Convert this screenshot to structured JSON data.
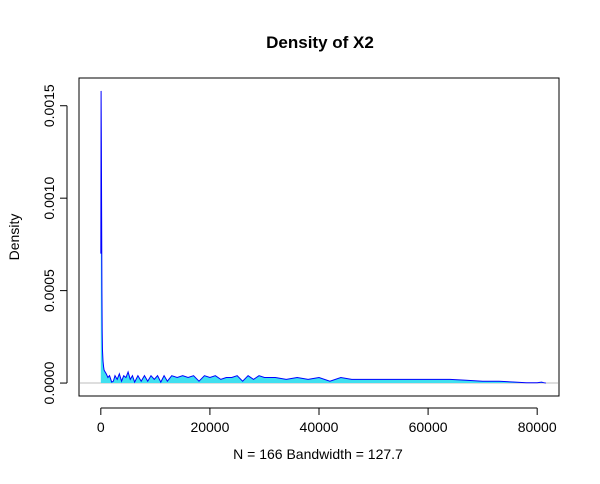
{
  "chart_data": {
    "type": "area",
    "title": "Density of X2",
    "xlabel": "N = 166   Bandwidth = 127.7",
    "ylabel": "Density",
    "xlim": [
      -4000,
      84000
    ],
    "ylim": [
      -7e-05,
      0.00165
    ],
    "x_ticks": [
      0,
      20000,
      40000,
      60000,
      80000
    ],
    "x_tick_labels": [
      "0",
      "20000",
      "40000",
      "60000",
      "80000"
    ],
    "y_ticks": [
      0,
      0.0005,
      0.001,
      0.0015
    ],
    "y_tick_labels": [
      "0.0000",
      "0.0005",
      "0.0010",
      "0.0015"
    ],
    "grid": false,
    "zero_line": true,
    "fill_color": "#40E0F0",
    "line_color": "#0000FF",
    "series": [
      {
        "x": [
          0,
          50,
          100,
          150,
          200,
          250,
          300,
          400,
          500,
          600,
          800,
          1000,
          1300,
          1600,
          2000,
          2300,
          2600,
          3000,
          3400,
          3800,
          4200,
          4600,
          5000,
          5400,
          5800,
          6200,
          6800,
          7400,
          8000,
          8600,
          9200,
          9800,
          10400,
          11000,
          11600,
          12200,
          13000,
          14000,
          15000,
          16000,
          17000,
          18000,
          19000,
          20000,
          21000,
          22000,
          23000,
          24000,
          25000,
          26000,
          27000,
          28000,
          29000,
          30000,
          32000,
          34000,
          36000,
          38000,
          40000,
          42000,
          44000,
          46000,
          48000,
          50000,
          52000,
          55000,
          58000,
          61000,
          64000,
          67000,
          70000,
          73000,
          76000,
          78000,
          80000,
          80800,
          81200,
          81600
        ],
        "y": [
          0.0007,
          0.00158,
          0.0013,
          0.0009,
          0.0005,
          0.00028,
          0.00018,
          0.00012,
          9e-05,
          7e-05,
          6e-05,
          5e-05,
          3e-05,
          4e-05,
          5e-06,
          1e-05,
          4e-05,
          2e-05,
          5e-05,
          1e-05,
          4e-05,
          3e-05,
          6e-05,
          2e-05,
          4e-05,
          5e-06,
          4e-05,
          1e-05,
          4e-05,
          1e-05,
          4e-05,
          2e-05,
          4e-05,
          5e-06,
          4e-05,
          1e-05,
          4e-05,
          3e-05,
          4e-05,
          3e-05,
          4e-05,
          1e-05,
          4e-05,
          3e-05,
          4e-05,
          2e-05,
          3e-05,
          3e-05,
          4e-05,
          1e-05,
          4e-05,
          2e-05,
          4e-05,
          3e-05,
          3e-05,
          2e-05,
          3e-05,
          2e-05,
          3e-05,
          1e-05,
          3e-05,
          2e-05,
          2e-05,
          2e-05,
          2e-05,
          2e-05,
          2e-05,
          2e-05,
          2e-05,
          1.5e-05,
          1e-05,
          1e-05,
          5e-06,
          2e-06,
          2e-06,
          5e-06,
          2e-06,
          0.0
        ]
      }
    ]
  }
}
